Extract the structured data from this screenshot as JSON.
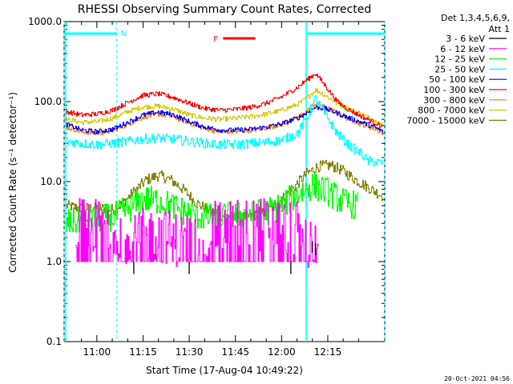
{
  "chart_data": {
    "type": "line",
    "title": "RHESSI Observing Summary Count Rates, Corrected",
    "xlabel": "Start Time (17-Aug-04 10:49:22)",
    "ylabel": "Corrected Count Rate (s⁻¹ detector⁻¹)",
    "y_scale": "log",
    "ylim": [
      0.1,
      1000.0
    ],
    "xlim": [
      "10:49:22",
      "12:33:30"
    ],
    "y_ticks": [
      "0.1",
      "1.0",
      "10.0",
      "100.0",
      "1000.0"
    ],
    "x_ticks": [
      "11:00",
      "11:15",
      "11:30",
      "11:45",
      "12:00",
      "12:15"
    ],
    "detector_info": [
      "Det 1,3,4,5,6,9,",
      "Att 1"
    ],
    "flags": {
      "night_label": "N",
      "flare_label": "F",
      "night_intervals": [
        [
          "10:49:22",
          "11:06:30"
        ],
        [
          "12:08:00",
          "12:33:30"
        ]
      ],
      "flare_interval": [
        "11:41:00",
        "11:51:30"
      ]
    },
    "series": [
      {
        "name": "3 - 6 keV",
        "color": "#000000",
        "x": [
          "11:12",
          "11:12.5",
          "11:30",
          "11:30.5",
          "12:03",
          "12:03.5",
          "12:10",
          "12:10.5",
          "12:11",
          "12:11.5"
        ],
        "y": [
          0.7,
          1.0,
          0.7,
          1.0,
          0.7,
          1.0,
          1.3,
          1.8,
          1.2,
          1.7
        ]
      },
      {
        "name": "6 - 12 keV",
        "color": "#ff00ff",
        "x": [
          "10:53",
          "11:06",
          "11:10",
          "11:20",
          "11:28",
          "11:35",
          "11:45",
          "11:50",
          "11:55",
          "12:00",
          "12:05",
          "12:08",
          "12:10",
          "12:12"
        ],
        "y": [
          2.8,
          2.8,
          2.0,
          2.2,
          1.8,
          2.5,
          2.8,
          2.8,
          2.9,
          2.8,
          2.5,
          1.6,
          1.8,
          2.2
        ]
      },
      {
        "name": "12 - 25 keV",
        "color": "#00ff00",
        "x": [
          "10:50",
          "10:55",
          "11:00",
          "11:05",
          "11:10",
          "11:15",
          "11:20",
          "11:25",
          "11:30",
          "11:35",
          "11:40",
          "11:45",
          "11:50",
          "11:55",
          "12:00",
          "12:05",
          "12:10",
          "12:15",
          "12:20",
          "12:25"
        ],
        "y": [
          3.0,
          3.3,
          3.4,
          3.6,
          4.5,
          6.0,
          5.8,
          4.8,
          4.0,
          3.6,
          3.6,
          3.8,
          3.9,
          4.2,
          5.0,
          7.0,
          9.0,
          7.5,
          5.5,
          5.0
        ]
      },
      {
        "name": "25 - 50 keV",
        "color": "#00ffff",
        "x": [
          "10:50",
          "10:55",
          "11:00",
          "11:05",
          "11:10",
          "11:15",
          "11:20",
          "11:25",
          "11:30",
          "11:35",
          "11:40",
          "11:45",
          "11:50",
          "11:55",
          "12:00",
          "12:05",
          "12:08",
          "12:11",
          "12:14",
          "12:18",
          "12:22",
          "12:26",
          "12:28",
          "12:33"
        ],
        "y": [
          32,
          30,
          29,
          30,
          32,
          34,
          35,
          34,
          32,
          30,
          29,
          29,
          30,
          31,
          33,
          40,
          60,
          110,
          70,
          40,
          28,
          22,
          18,
          17
        ]
      },
      {
        "name": "50 - 100 keV",
        "color": "#0000ff",
        "x": [
          "10:50",
          "10:55",
          "11:00",
          "11:05",
          "11:10",
          "11:15",
          "11:20",
          "11:25",
          "11:30",
          "11:35",
          "11:40",
          "11:45",
          "11:50",
          "11:55",
          "12:00",
          "12:05",
          "12:08",
          "12:11",
          "12:14",
          "12:18",
          "12:22",
          "12:26",
          "12:30",
          "12:33"
        ],
        "y": [
          52,
          44,
          42,
          45,
          55,
          68,
          74,
          68,
          56,
          48,
          44,
          44,
          45,
          48,
          53,
          62,
          72,
          85,
          82,
          72,
          62,
          55,
          48,
          42
        ]
      },
      {
        "name": "100 - 300 keV",
        "color": "#ff0000",
        "x": [
          "10:50",
          "10:55",
          "11:00",
          "11:05",
          "11:10",
          "11:15",
          "11:20",
          "11:25",
          "11:30",
          "11:35",
          "11:40",
          "11:45",
          "11:50",
          "11:55",
          "12:00",
          "12:05",
          "12:08",
          "12:11",
          "12:14",
          "12:18",
          "12:22",
          "12:26",
          "12:30",
          "12:33"
        ],
        "y": [
          75,
          68,
          70,
          78,
          98,
          120,
          125,
          112,
          95,
          82,
          78,
          80,
          85,
          95,
          115,
          150,
          185,
          225,
          160,
          100,
          78,
          65,
          55,
          48
        ]
      },
      {
        "name": "300 - 800 keV",
        "color": "#ff8000",
        "x": [
          "10:50",
          "10:55",
          "11:00",
          "11:05",
          "11:10",
          "11:15",
          "11:20",
          "11:25",
          "11:30",
          "11:35",
          "11:40",
          "11:45",
          "11:50",
          "11:55",
          "12:00",
          "12:05",
          "12:08",
          "12:11",
          "12:14",
          "12:18",
          "12:22",
          "12:26",
          "12:30",
          "12:33"
        ],
        "y": [
          48,
          42,
          40,
          43,
          52,
          64,
          70,
          64,
          54,
          46,
          42,
          42,
          44,
          47,
          52,
          62,
          75,
          95,
          85,
          72,
          60,
          52,
          46,
          40
        ]
      },
      {
        "name": "800 - 7000 keV",
        "color": "#d4c800",
        "x": [
          "10:50",
          "10:55",
          "11:00",
          "11:05",
          "11:10",
          "11:15",
          "11:20",
          "11:25",
          "11:30",
          "11:35",
          "11:40",
          "11:45",
          "11:50",
          "11:55",
          "12:00",
          "12:05",
          "12:08",
          "12:11",
          "12:14",
          "12:18",
          "12:22",
          "12:26",
          "12:30",
          "12:33"
        ],
        "y": [
          60,
          55,
          56,
          62,
          75,
          86,
          88,
          80,
          68,
          62,
          60,
          62,
          65,
          70,
          78,
          92,
          110,
          140,
          120,
          95,
          80,
          70,
          58,
          50
        ]
      },
      {
        "name": "7000 - 15000 keV",
        "color": "#808000",
        "x": [
          "10:50",
          "10:55",
          "11:00",
          "11:05",
          "11:08",
          "11:12",
          "11:16",
          "11:20",
          "11:24",
          "11:28",
          "11:32",
          "11:36",
          "11:40",
          "11:44",
          "11:48",
          "11:52",
          "11:56",
          "12:00",
          "12:04",
          "12:08",
          "12:12",
          "12:16",
          "12:20",
          "12:24",
          "12:28",
          "12:33"
        ],
        "y": [
          5.0,
          4.6,
          4.7,
          4.5,
          5.2,
          7.5,
          10.5,
          12.0,
          10.5,
          8.0,
          5.5,
          4.4,
          3.8,
          3.6,
          3.6,
          3.8,
          4.4,
          6.0,
          8.5,
          12.5,
          15.5,
          16.0,
          13.5,
          10.5,
          8.5,
          6.5
        ]
      }
    ]
  },
  "footer_timestamp": "20-Oct-2021 04:56"
}
